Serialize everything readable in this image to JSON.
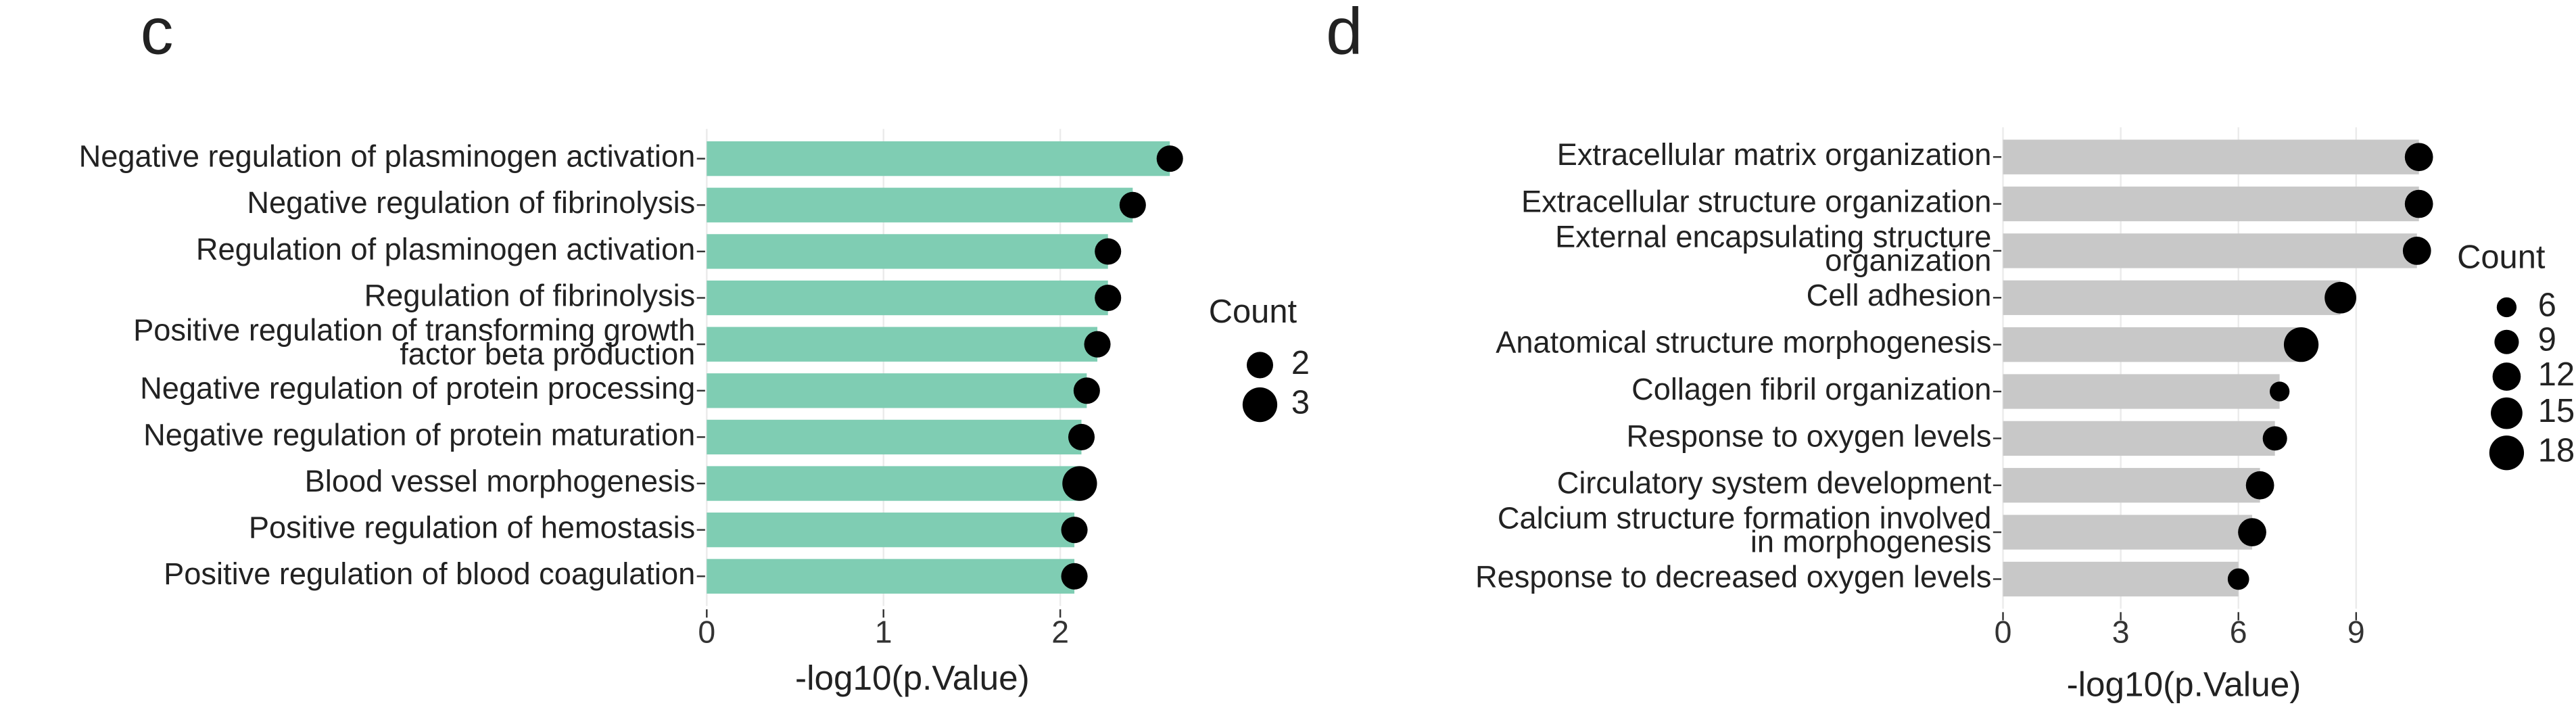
{
  "chart_data": [
    {
      "type": "bar",
      "panel_label": "c",
      "categories": [
        "Negative regulation of plasminogen activation",
        "Negative regulation of fibrinolysis",
        "Regulation of plasminogen activation",
        "Regulation of fibrinolysis",
        "Positive regulation of transforming growth\nfactor beta production",
        "Negative regulation of protein processing",
        "Negative regulation of protein maturation",
        "Blood vessel morphogenesis",
        "Positive regulation of hemostasis",
        "Positive regulation of blood coagulation"
      ],
      "values": [
        2.62,
        2.41,
        2.27,
        2.27,
        2.21,
        2.15,
        2.12,
        2.11,
        2.08,
        2.08
      ],
      "sizes": [
        2,
        2,
        2,
        2,
        2,
        2,
        2,
        3,
        2,
        2
      ],
      "color": "#7fcdb3",
      "dot_color": "#000000",
      "xlabel": "-log10(p.Value)",
      "xlim": [
        0,
        2.7
      ],
      "xticks": [
        0,
        1,
        2
      ],
      "grid": true,
      "size_legend": {
        "title": "Count",
        "values": [
          2,
          3
        ]
      }
    },
    {
      "type": "bar",
      "panel_label": "d",
      "categories": [
        "Extracellular matrix organization",
        "Extracellular structure organization",
        "External encapsulating structure\norganization",
        "Cell adhesion",
        "Anatomical structure morphogenesis",
        "Collagen fibril organization",
        "Response to oxygen levels",
        "Circulatory system development",
        "Calcium structure formation involved\nin morphogenesis",
        "Response to decreased oxygen levels"
      ],
      "values": [
        10.6,
        10.6,
        10.55,
        8.6,
        7.6,
        7.05,
        6.93,
        6.55,
        6.35,
        6.0
      ],
      "sizes": [
        12,
        12,
        12,
        15,
        18,
        6,
        9,
        12,
        12,
        7
      ],
      "color": "#c8c8c8",
      "dot_color": "#000000",
      "xlabel": "-log10(p.Value)",
      "xlim": [
        0,
        10.9
      ],
      "xticks": [
        0,
        3,
        6,
        9
      ],
      "grid": true,
      "size_legend": {
        "title": "Count",
        "values": [
          6,
          9,
          12,
          15,
          18
        ]
      }
    }
  ]
}
